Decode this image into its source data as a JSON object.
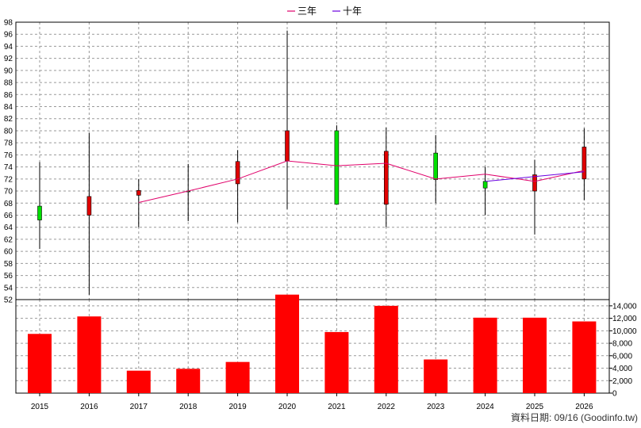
{
  "chart_data": {
    "type": "candlestick+line+bar",
    "legend": [
      {
        "label": "三年",
        "color": "#e0006a"
      },
      {
        "label": "十年",
        "color": "#6a00e0"
      }
    ],
    "categories": [
      "2015",
      "2016",
      "2017",
      "2018",
      "2019",
      "2020",
      "2021",
      "2022",
      "2023",
      "2024",
      "2025",
      "2026"
    ],
    "price_axis": {
      "ylim": [
        52,
        98
      ],
      "ticks": [
        52,
        54,
        56,
        58,
        60,
        62,
        64,
        66,
        68,
        70,
        72,
        74,
        76,
        78,
        80,
        82,
        84,
        86,
        88,
        90,
        92,
        94,
        96,
        98
      ]
    },
    "candles": [
      {
        "year": "2015",
        "open": 65.2,
        "close": 67.5,
        "high": 74.8,
        "low": 60.4
      },
      {
        "year": "2016",
        "open": 69.1,
        "close": 66.0,
        "high": 79.6,
        "low": 52.8
      },
      {
        "year": "2017",
        "open": 70.1,
        "close": 69.3,
        "high": 72.0,
        "low": 64.0
      },
      {
        "year": "2018",
        "open": 70.0,
        "close": 70.0,
        "high": 74.5,
        "low": 65.0
      },
      {
        "year": "2019",
        "open": 74.9,
        "close": 71.2,
        "high": 76.8,
        "low": 64.8
      },
      {
        "year": "2020",
        "open": 80.0,
        "close": 75.0,
        "high": 96.6,
        "low": 67.0
      },
      {
        "year": "2021",
        "open": 67.8,
        "close": 80.0,
        "high": 80.9,
        "low": 67.8
      },
      {
        "year": "2022",
        "open": 76.6,
        "close": 67.8,
        "high": 80.5,
        "low": 64.0
      },
      {
        "year": "2023",
        "open": 71.9,
        "close": 76.3,
        "high": 79.3,
        "low": 68.0
      },
      {
        "year": "2024",
        "open": 70.5,
        "close": 71.6,
        "high": 74.0,
        "low": 66.0
      },
      {
        "year": "2025",
        "open": 72.7,
        "close": 70.0,
        "high": 75.2,
        "low": 62.8
      },
      {
        "year": "2026",
        "open": 77.3,
        "close": 72.0,
        "high": 80.4,
        "low": 68.5
      }
    ],
    "candle_colors": {
      "up": "#00e000",
      "down": "#e00000",
      "border": "#000000"
    },
    "series": [
      {
        "name": "三年",
        "color": "#e0006a",
        "values": [
          null,
          null,
          68.1,
          70.0,
          72.0,
          75.0,
          74.2,
          74.6,
          72.0,
          72.8,
          71.6,
          73.4
        ]
      },
      {
        "name": "十年",
        "color": "#6a00e0",
        "values": [
          null,
          null,
          null,
          null,
          null,
          null,
          null,
          null,
          null,
          71.6,
          72.4,
          73.2
        ]
      }
    ],
    "volume": {
      "values": [
        9500,
        12300,
        3600,
        3900,
        5000,
        15800,
        9800,
        14000,
        5400,
        12100,
        12100,
        11500
      ],
      "ylim": [
        0,
        15000
      ],
      "ticks": [
        0,
        2000,
        4000,
        6000,
        8000,
        10000,
        12000,
        14000
      ],
      "tick_labels": [
        "0",
        "2,000",
        "4,000",
        "6,000",
        "8,000",
        "10,000",
        "12,000",
        "14,000"
      ],
      "color": "#ff0000"
    },
    "grid": true
  },
  "footer": {
    "source_text": "資料日期: 09/16  (Goodinfo.tw)"
  }
}
